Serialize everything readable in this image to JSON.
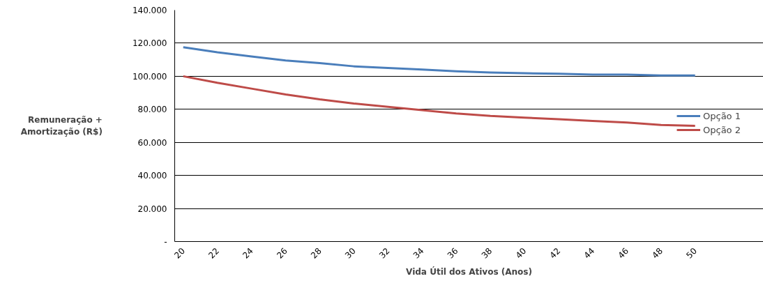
{
  "chart_data": {
    "type": "line",
    "xlabel": "Vida Útil dos Ativos (Anos)",
    "ylabel": "Remuneração +\nAmortização (R$)",
    "x": [
      20,
      22,
      24,
      26,
      28,
      30,
      32,
      34,
      36,
      38,
      40,
      42,
      44,
      46,
      48,
      50
    ],
    "series": [
      {
        "name": "Opção 1",
        "color": "#4a7ebb",
        "values": [
          117500,
          114500,
          112000,
          109500,
          108000,
          106000,
          105000,
          104000,
          103000,
          102300,
          101800,
          101500,
          101000,
          101000,
          100500,
          100500
        ]
      },
      {
        "name": "Opção 2",
        "color": "#be4b48",
        "values": [
          100000,
          96000,
          92500,
          89000,
          86000,
          83500,
          81500,
          79500,
          77500,
          76000,
          75000,
          74000,
          73000,
          72000,
          70500,
          70000
        ]
      }
    ],
    "xlim": [
      19.5,
      54
    ],
    "xticks": [
      20,
      22,
      24,
      26,
      28,
      30,
      32,
      34,
      36,
      38,
      40,
      42,
      44,
      46,
      48,
      50
    ],
    "ylim": [
      0,
      140000
    ],
    "yticks": [
      {
        "value": 0,
        "label": "-"
      },
      {
        "value": 20000,
        "label": "20.000"
      },
      {
        "value": 40000,
        "label": "40.000"
      },
      {
        "value": 60000,
        "label": "60.000"
      },
      {
        "value": 80000,
        "label": "80.000"
      },
      {
        "value": 100000,
        "label": "100.000"
      },
      {
        "value": 120000,
        "label": "120.000"
      },
      {
        "value": 140000,
        "label": "140.000"
      }
    ],
    "grid": "y",
    "legend": "right",
    "marker": "none",
    "line_style": "solid"
  }
}
